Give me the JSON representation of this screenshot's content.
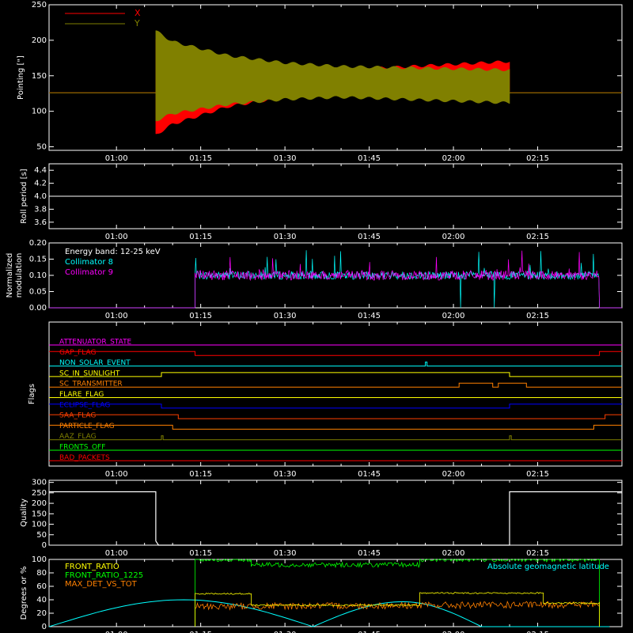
{
  "chart_data": [
    {
      "type": "line",
      "panel": "pointing",
      "ylabel": "Pointing [\"]",
      "ylim": [
        45,
        250
      ],
      "yticks": [
        "50",
        "100",
        "150",
        "200",
        "250"
      ],
      "xticks": [
        "01:00",
        "01:15",
        "01:30",
        "01:45",
        "02:00",
        "02:15"
      ],
      "legend_placement": "top-left",
      "series": [
        {
          "name": "X",
          "color": "#ff0000",
          "x": [
            "00:48",
            "01:07",
            "01:07",
            "01:10",
            "01:20",
            "01:30",
            "01:40",
            "02:10",
            "02:10",
            "02:30"
          ],
          "y_upper": [
            126,
            126,
            205,
            185,
            160,
            156,
            160,
            172,
            126,
            126
          ],
          "y_lower": [
            126,
            126,
            65,
            80,
            105,
            118,
            122,
            126,
            126,
            126
          ]
        },
        {
          "name": "Y",
          "color": "#808000",
          "x": [
            "00:48",
            "01:07",
            "01:07",
            "01:10",
            "01:20",
            "01:30",
            "01:40",
            "02:10",
            "02:10",
            "02:30"
          ],
          "y_upper": [
            126,
            126,
            215,
            200,
            180,
            170,
            165,
            160,
            126,
            126
          ],
          "y_lower": [
            126,
            126,
            85,
            95,
            108,
            115,
            118,
            110,
            126,
            126
          ]
        }
      ]
    },
    {
      "type": "line",
      "panel": "roll",
      "ylabel": "Roll period [s]",
      "ylim": [
        3.5,
        4.5
      ],
      "yticks": [
        "3.6",
        "3.8",
        "4.0",
        "4.2",
        "4.4"
      ],
      "xticks": [
        "01:00",
        "01:15",
        "01:30",
        "01:45",
        "02:00",
        "02:15"
      ],
      "series": [
        {
          "name": "",
          "color": "#ffffff",
          "x": [
            "00:48",
            "02:30"
          ],
          "y": [
            4.0,
            4.0
          ]
        }
      ]
    },
    {
      "type": "line",
      "panel": "modulation",
      "ylabel": "Normalized modulation",
      "ylim": [
        0,
        0.2
      ],
      "yticks": [
        "0.00",
        "0.05",
        "0.10",
        "0.15",
        "0.20"
      ],
      "xticks": [
        "01:00",
        "01:15",
        "01:30",
        "01:45",
        "02:00",
        "02:15"
      ],
      "annotation": "Energy band: 12-25 keV",
      "series": [
        {
          "name": "Collimator 8",
          "color": "#00ffff",
          "x": [
            "00:48",
            "01:14",
            "01:14",
            "02:01",
            "02:02",
            "02:07",
            "02:08",
            "02:26",
            "02:26",
            "02:30"
          ],
          "y": [
            0,
            0,
            0.1,
            0.1,
            0.0,
            0.1,
            0.0,
            0.1,
            0,
            0
          ]
        },
        {
          "name": "Collimator 9",
          "color": "#ff00ff",
          "x": [
            "00:48",
            "01:14",
            "01:14",
            "02:26",
            "02:26",
            "02:30"
          ],
          "y": [
            0,
            0,
            0.1,
            0.1,
            0,
            0
          ]
        }
      ]
    },
    {
      "type": "line",
      "panel": "flags",
      "ylabel": "Flags",
      "xticks": [
        "01:00",
        "01:15",
        "01:30",
        "01:45",
        "02:00",
        "02:15"
      ],
      "series": [
        {
          "name": "ATTENUATOR_STATE",
          "color": "#ff00ff",
          "steps": [
            [
              "00:48",
              0
            ]
          ]
        },
        {
          "name": "GAP_FLAG",
          "color": "#ff0000",
          "steps": [
            [
              "00:48",
              1
            ],
            [
              "01:14",
              0
            ],
            [
              "02:26",
              1
            ]
          ]
        },
        {
          "name": "NON_SOLAR_EVENT",
          "color": "#00ffff",
          "steps": [
            [
              "00:48",
              0
            ],
            [
              "01:55",
              1
            ],
            [
              "01:55.3",
              0
            ]
          ]
        },
        {
          "name": "SC_IN_SUNLIGHT",
          "color": "#ffff00",
          "steps": [
            [
              "00:48",
              0
            ],
            [
              "01:08",
              1
            ],
            [
              "02:10",
              0
            ]
          ]
        },
        {
          "name": "SC_TRANSMITTER",
          "color": "#ff8000",
          "steps": [
            [
              "00:48",
              0
            ],
            [
              "02:01",
              1
            ],
            [
              "02:07",
              0
            ],
            [
              "02:08",
              1
            ],
            [
              "02:13",
              0
            ]
          ]
        },
        {
          "name": "FLARE_FLAG",
          "color": "#ffff00",
          "steps": [
            [
              "00:48",
              0
            ]
          ]
        },
        {
          "name": "ECLIPSE_FLAG",
          "color": "#0000ff",
          "steps": [
            [
              "00:48",
              1
            ],
            [
              "01:08",
              0
            ],
            [
              "02:10",
              1
            ]
          ]
        },
        {
          "name": "SAA_FLAG",
          "color": "#ff4000",
          "steps": [
            [
              "00:48",
              1
            ],
            [
              "01:11",
              0
            ],
            [
              "02:27",
              1
            ]
          ]
        },
        {
          "name": "PARTICLE_FLAG",
          "color": "#ff8000",
          "steps": [
            [
              "00:48",
              1
            ],
            [
              "01:10",
              0
            ],
            [
              "02:25",
              1
            ]
          ]
        },
        {
          "name": "AAZ_FLAG",
          "color": "#808000",
          "steps": [
            [
              "00:48",
              0
            ],
            [
              "01:08",
              1
            ],
            [
              "01:08.3",
              0
            ],
            [
              "02:10",
              1
            ],
            [
              "02:10.3",
              0
            ]
          ]
        },
        {
          "name": "FRONTS_OFF",
          "color": "#00ff00",
          "steps": [
            [
              "00:48",
              0
            ]
          ]
        },
        {
          "name": "BAD_PACKETS",
          "color": "#ff0000",
          "steps": [
            [
              "00:48",
              0
            ]
          ]
        }
      ]
    },
    {
      "type": "line",
      "panel": "quality",
      "ylabel": "Quality",
      "ylim": [
        0,
        310
      ],
      "yticks": [
        "0",
        "50",
        "100",
        "150",
        "200",
        "250",
        "300"
      ],
      "xticks": [
        "01:00",
        "01:15",
        "01:30",
        "01:45",
        "02:00",
        "02:15"
      ],
      "series": [
        {
          "name": "",
          "color": "#ffffff",
          "x": [
            "00:48",
            "01:07",
            "01:07",
            "01:07.5",
            "01:07.5",
            "02:10",
            "02:10",
            "02:30"
          ],
          "y": [
            255,
            255,
            20,
            0,
            0,
            0,
            255,
            255
          ]
        }
      ]
    },
    {
      "type": "line",
      "panel": "ratios",
      "ylabel": "Degrees or %",
      "ylim": [
        0,
        100
      ],
      "yticks": [
        "0",
        "20",
        "40",
        "60",
        "80",
        "100"
      ],
      "xticks": [
        "01:00",
        "01:15",
        "01:30",
        "01:45",
        "02:00",
        "02:15"
      ],
      "legend_placement": "top-left",
      "annotation": "Absolute geomagnetic latitude",
      "series": [
        {
          "name": "FRONT_RATIO",
          "color": "#ffff00",
          "x": [
            "01:14",
            "01:14",
            "01:24",
            "01:24",
            "01:54",
            "01:54",
            "02:16",
            "02:16",
            "02:26",
            "02:26"
          ],
          "y": [
            0,
            49,
            49,
            32,
            32,
            50,
            50,
            35,
            35,
            0
          ]
        },
        {
          "name": "FRONT_RATIO_1225",
          "color": "#00ff00",
          "x": [
            "01:14",
            "01:14",
            "01:24",
            "01:24",
            "01:54",
            "01:54",
            "02:26",
            "02:26"
          ],
          "y": [
            0,
            100,
            100,
            92,
            92,
            100,
            100,
            0
          ]
        },
        {
          "name": "MAX_DET_VS_TOT",
          "color": "#ff8000",
          "x": [
            "01:14",
            "01:14",
            "02:26",
            "02:26"
          ],
          "y": [
            0,
            30,
            33,
            0
          ]
        },
        {
          "name": "Absolute geomagnetic latitude",
          "color": "#00ffff",
          "x": [
            "00:48",
            "01:12",
            "01:35",
            "01:51",
            "02:05",
            "02:29"
          ],
          "y": [
            0,
            40,
            0,
            37,
            0,
            0
          ]
        }
      ]
    }
  ]
}
